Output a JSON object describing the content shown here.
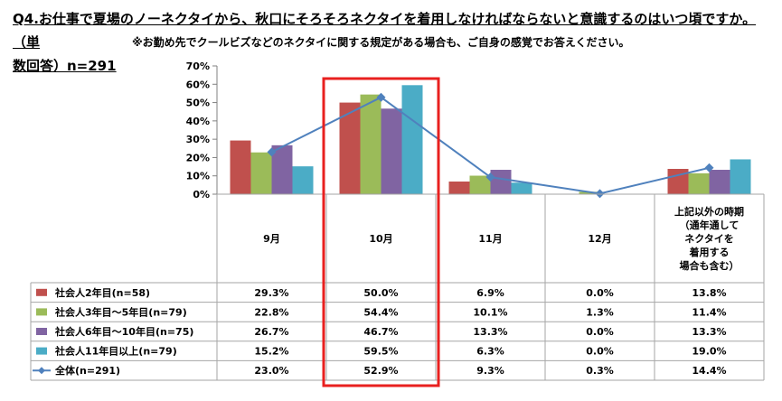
{
  "question": {
    "line1": "Q4.お仕事で夏場のノーネクタイから、秋口にそろそろネクタイを着用しなければならないと意識するのはいつ頃ですか。（単",
    "line2": "数回答）n=291",
    "note": "※お勤め先でクールビズなどのネクタイに関する規定がある場合も、ご自身の感覚でお答えください。"
  },
  "chart_data": {
    "type": "bar",
    "categories": [
      "9月",
      "10月",
      "11月",
      "12月",
      "上記以外の時期（通年通してネクタイを着用する場合も含む）"
    ],
    "category_lines": [
      [
        "9月"
      ],
      [
        "10月"
      ],
      [
        "11月"
      ],
      [
        "12月"
      ],
      [
        "上記以外の時期",
        "（通年通して",
        "ネクタイを",
        "着用する",
        "場合も含む）"
      ]
    ],
    "ylim": [
      0,
      70
    ],
    "y_ticks": [
      "0%",
      "10%",
      "20%",
      "30%",
      "40%",
      "50%",
      "60%",
      "70%"
    ],
    "series": [
      {
        "name": "社会人2年目(n=58)",
        "kind": "bar",
        "color": "#c0504d",
        "values": [
          29.3,
          50.0,
          6.9,
          0.0,
          13.8
        ],
        "labels": [
          "29.3%",
          "50.0%",
          "6.9%",
          "0.0%",
          "13.8%"
        ]
      },
      {
        "name": "社会人3年目～5年目(n=79)",
        "kind": "bar",
        "color": "#9bbb59",
        "values": [
          22.8,
          54.4,
          10.1,
          1.3,
          11.4
        ],
        "labels": [
          "22.8%",
          "54.4%",
          "10.1%",
          "1.3%",
          "11.4%"
        ]
      },
      {
        "name": "社会人6年目～10年目(n=75)",
        "kind": "bar",
        "color": "#8064a2",
        "values": [
          26.7,
          46.7,
          13.3,
          0.0,
          13.3
        ],
        "labels": [
          "26.7%",
          "46.7%",
          "13.3%",
          "0.0%",
          "13.3%"
        ]
      },
      {
        "name": "社会人11年目以上(n=79)",
        "kind": "bar",
        "color": "#4bacc6",
        "values": [
          15.2,
          59.5,
          6.3,
          0.0,
          19.0
        ],
        "labels": [
          "15.2%",
          "59.5%",
          "6.3%",
          "0.0%",
          "19.0%"
        ]
      },
      {
        "name": "全体(n=291)",
        "kind": "line",
        "color": "#4f81bd",
        "values": [
          23.0,
          52.9,
          9.3,
          0.3,
          14.4
        ],
        "labels": [
          "23.0%",
          "52.9%",
          "9.3%",
          "0.3%",
          "14.4%"
        ]
      }
    ],
    "highlight_category": "10月",
    "highlight_color": "#e8201f",
    "grid": false,
    "legend": "table-left"
  }
}
